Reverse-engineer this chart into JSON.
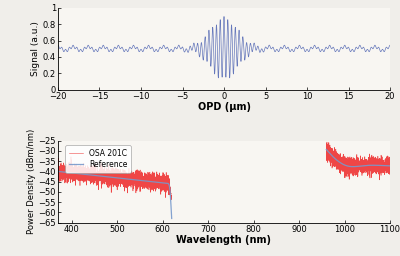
{
  "top_panel": {
    "xlim": [
      -20,
      20
    ],
    "ylim": [
      0,
      1
    ],
    "xlabel": "OPD (μm)",
    "ylabel": "Signal (a.u.)",
    "line_color": "#6678bb",
    "baseline": 0.5,
    "envelope_sigma": 1.6,
    "carrier_freq_per_um": 2.2,
    "burst_amplitude": 0.35,
    "bg_ripple_amp": 0.025,
    "bg_ripple_freq": 0.55
  },
  "bottom_panel": {
    "xlim": [
      370,
      1100
    ],
    "ylim": [
      -65,
      -25
    ],
    "yticks": [
      -65,
      -60,
      -55,
      -50,
      -45,
      -40,
      -35,
      -30,
      -25
    ],
    "xlabel": "Wavelength (nm)",
    "ylabel": "Power Density (dBm/nm)",
    "osa_color": "#ee3333",
    "ref_color": "#7799cc",
    "legend_osa": "OSA 201C",
    "legend_ref": "Reference"
  },
  "figure_bg": "#f0eeea"
}
